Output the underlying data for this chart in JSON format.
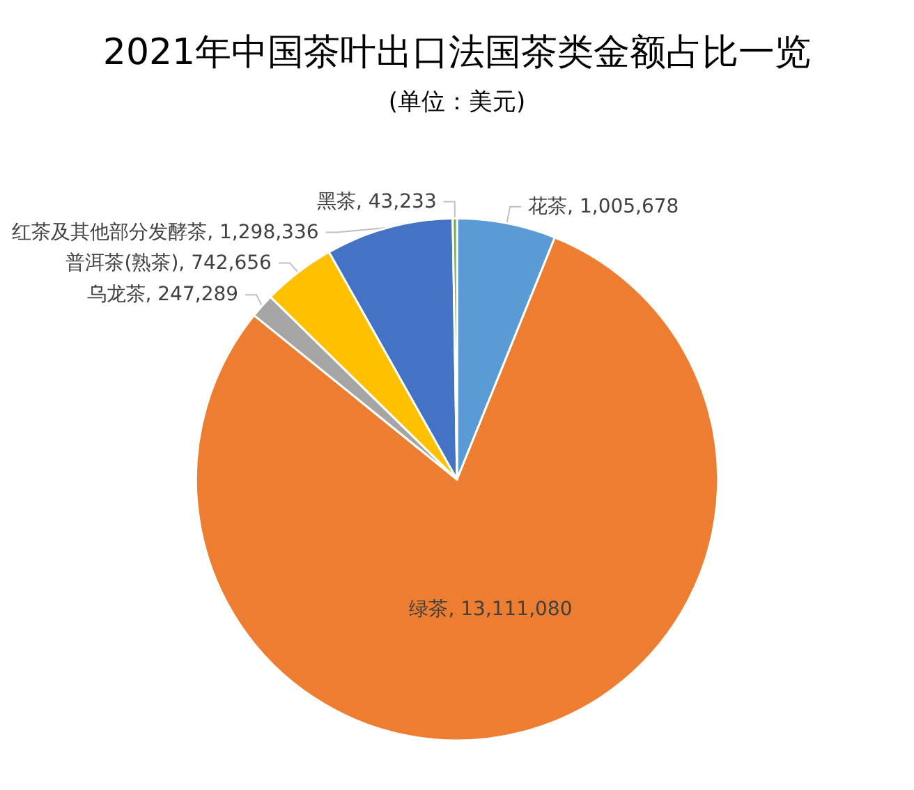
{
  "chart_data": {
    "type": "pie",
    "title": "2021年中国茶叶出口法国茶类金额占比一览",
    "subtitle": "(单位：美元)",
    "categories": [
      "花茶",
      "绿茶",
      "乌龙茶",
      "普洱茶(熟茶)",
      "红茶及其他部分发酵茶",
      "黑茶"
    ],
    "value_labels": [
      "1,005,678",
      "13,111,080",
      "247,289",
      "742,656",
      "1,298,336",
      "43,233"
    ],
    "values": [
      1005678,
      13111080,
      247289,
      742656,
      1298336,
      43233
    ],
    "colors": [
      "#5b9bd5",
      "#ed7d31",
      "#a5a5a5",
      "#ffc000",
      "#4472c4",
      "#70ad47"
    ],
    "legend": false
  }
}
